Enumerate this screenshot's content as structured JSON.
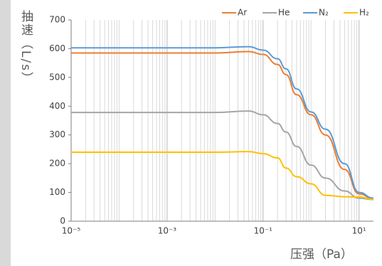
{
  "chart_data": {
    "type": "line",
    "y_label": "抽速（L/s）",
    "x_label": "压强（Pa）",
    "x": [
      1e-05,
      0.01,
      0.05,
      0.1,
      0.2,
      0.3,
      0.5,
      1,
      2,
      5,
      10,
      20
    ],
    "series": [
      {
        "name": "Ar",
        "color": "#ed7d31",
        "values": [
          585,
          585,
          590,
          580,
          545,
          510,
          440,
          370,
          300,
          180,
          95,
          78
        ]
      },
      {
        "name": "He",
        "color": "#a5a5a5",
        "values": [
          378,
          378,
          383,
          370,
          340,
          310,
          260,
          195,
          150,
          105,
          80,
          75
        ]
      },
      {
        "name": "N₂",
        "color": "#5b9bd5",
        "values": [
          603,
          603,
          607,
          595,
          565,
          530,
          460,
          380,
          320,
          200,
          100,
          80
        ]
      },
      {
        "name": "H₂",
        "color": "#ffc000",
        "values": [
          240,
          240,
          242,
          235,
          220,
          185,
          155,
          130,
          90,
          85,
          84,
          76
        ]
      }
    ],
    "xscale": "log",
    "xlim": [
      1e-05,
      20
    ],
    "xticks": [
      {
        "value": 1e-05,
        "label": "10⁻⁵"
      },
      {
        "value": 0.001,
        "label": "10⁻³"
      },
      {
        "value": 0.1,
        "label": "10⁻¹"
      },
      {
        "value": 10,
        "label": "10¹"
      }
    ],
    "ylim": [
      0,
      700
    ],
    "yticks": [
      0,
      100,
      200,
      300,
      400,
      500,
      600,
      700
    ],
    "x_minor_grid": true,
    "legend": "top-right"
  }
}
